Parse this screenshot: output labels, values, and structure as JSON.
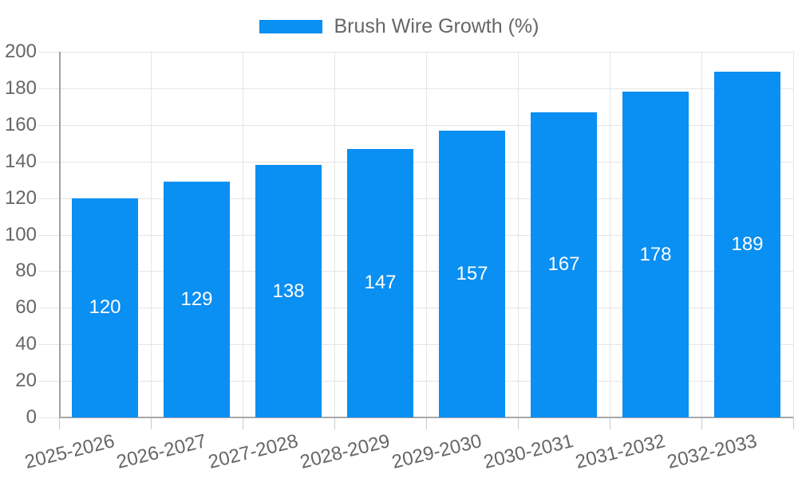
{
  "legend": {
    "label": "Brush Wire Growth (%)"
  },
  "chart_data": {
    "type": "bar",
    "title": "",
    "series_name": "Brush Wire Growth (%)",
    "categories": [
      "2025-2026",
      "2026-2027",
      "2027-2028",
      "2028-2029",
      "2029-2030",
      "2030-2031",
      "2031-2032",
      "2032-2033"
    ],
    "values": [
      120,
      129,
      138,
      147,
      157,
      167,
      178,
      189
    ],
    "xlabel": "",
    "ylabel": "",
    "ylim": [
      0,
      200
    ],
    "ytick_step": 20,
    "yticks": [
      0,
      20,
      40,
      60,
      80,
      100,
      120,
      140,
      160,
      180,
      200
    ],
    "grid": true,
    "legend_position": "top-center",
    "bar_color": "#0a8ff2",
    "value_label_color": "#ffffff",
    "axis_text_color": "#666666",
    "gridline_color": "#e5e5e5",
    "axis_line_color": "#a0a0a0"
  }
}
